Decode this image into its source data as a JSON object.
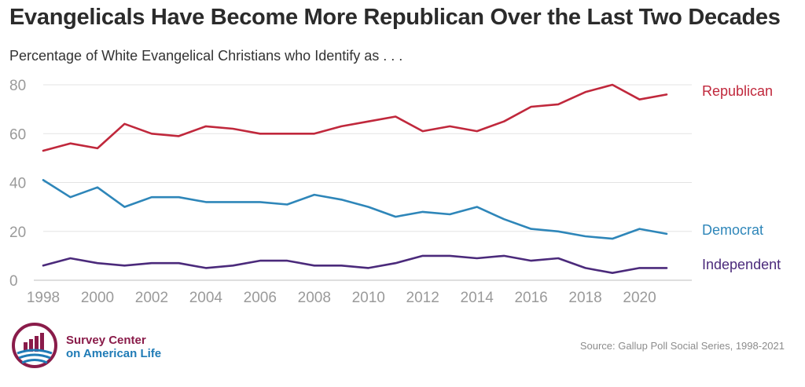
{
  "title": "Evangelicals Have Become More Republican Over the Last Two Decades",
  "subtitle": "Percentage of White Evangelical Christians who Identify as . . .",
  "source": "Source: Gallup Poll Social Series, 1998-2021",
  "brand": {
    "line1": "Survey Center",
    "line2": "on American Life"
  },
  "colors": {
    "republican": "#c0283c",
    "democrat": "#2e86b9",
    "independent": "#4b2a7b",
    "grid": "#e3e3e3",
    "tick": "#9a9a9a"
  },
  "chart_data": {
    "type": "line",
    "title": "Evangelicals Have Become More Republican Over the Last Two Decades",
    "subtitle": "Percentage of White Evangelical Christians who Identify as . . .",
    "xlabel": "",
    "ylabel": "",
    "x": [
      1998,
      1999,
      2000,
      2001,
      2002,
      2003,
      2004,
      2005,
      2006,
      2007,
      2008,
      2009,
      2010,
      2011,
      2012,
      2013,
      2014,
      2015,
      2016,
      2017,
      2018,
      2019,
      2020,
      2021
    ],
    "xticks": [
      "1998",
      "2000",
      "2002",
      "2004",
      "2006",
      "2008",
      "2010",
      "2012",
      "2014",
      "2016",
      "2018",
      "2020"
    ],
    "yticks": [
      "0",
      "20",
      "40",
      "60",
      "80"
    ],
    "ylim": [
      0,
      80
    ],
    "grid": true,
    "series": [
      {
        "name": "Republican",
        "color": "#c0283c",
        "values": [
          53,
          56,
          54,
          64,
          60,
          59,
          63,
          62,
          60,
          60,
          60,
          63,
          65,
          67,
          61,
          63,
          61,
          65,
          71,
          72,
          77,
          80,
          74,
          76
        ]
      },
      {
        "name": "Democrat",
        "color": "#2e86b9",
        "values": [
          41,
          34,
          38,
          30,
          34,
          34,
          32,
          32,
          32,
          31,
          35,
          33,
          30,
          26,
          28,
          27,
          30,
          25,
          21,
          20,
          18,
          17,
          21,
          19
        ]
      },
      {
        "name": "Independent",
        "color": "#4b2a7b",
        "values": [
          6,
          9,
          7,
          6,
          7,
          7,
          5,
          6,
          8,
          8,
          6,
          6,
          5,
          7,
          10,
          10,
          9,
          10,
          8,
          9,
          5,
          3,
          5,
          5
        ]
      }
    ]
  }
}
